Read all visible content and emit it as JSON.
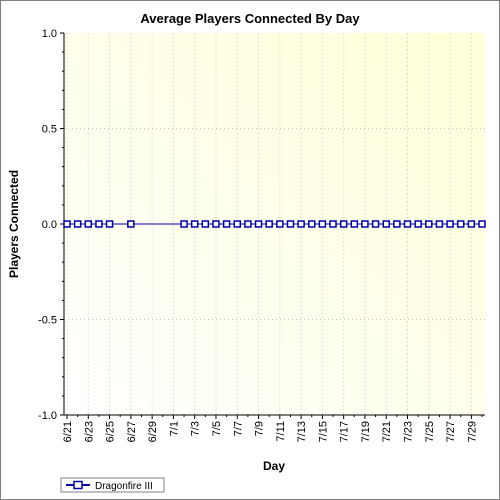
{
  "chart_data": {
    "type": "line",
    "title": "Average Players Connected By Day",
    "xlabel": "Day",
    "ylabel": "Players Connected",
    "ylim": [
      -1.0,
      1.0
    ],
    "y_ticks": [
      "1.0",
      "0.5",
      "0.0",
      "-0.5",
      "-1.0"
    ],
    "x_tick_labels": [
      "6/21",
      "6/23",
      "6/25",
      "6/27",
      "6/29",
      "7/1",
      "7/3",
      "7/5",
      "7/7",
      "7/9",
      "7/11",
      "7/13",
      "7/15",
      "7/17",
      "7/19",
      "7/21",
      "7/23",
      "7/25",
      "7/27",
      "7/29"
    ],
    "grid": true,
    "legend_position": "bottom-left",
    "background_gradient": [
      "#ffffff",
      "#ffffd8"
    ],
    "series": [
      {
        "name": "Dragonfire III",
        "color": "#0000aa",
        "x": [
          "6/21",
          "6/22",
          "6/23",
          "6/24",
          "6/25",
          "6/27",
          "7/2",
          "7/3",
          "7/4",
          "7/5",
          "7/6",
          "7/7",
          "7/8",
          "7/9",
          "7/10",
          "7/11",
          "7/12",
          "7/13",
          "7/14",
          "7/15",
          "7/16",
          "7/17",
          "7/18",
          "7/19",
          "7/20",
          "7/21",
          "7/22",
          "7/23",
          "7/24",
          "7/25",
          "7/26",
          "7/27",
          "7/28",
          "7/29",
          "7/30"
        ],
        "values": [
          0,
          0,
          0,
          0,
          0,
          0,
          0,
          0,
          0,
          0,
          0,
          0,
          0,
          0,
          0,
          0,
          0,
          0,
          0,
          0,
          0,
          0,
          0,
          0,
          0,
          0,
          0,
          0,
          0,
          0,
          0,
          0,
          0,
          0,
          0
        ]
      }
    ]
  }
}
